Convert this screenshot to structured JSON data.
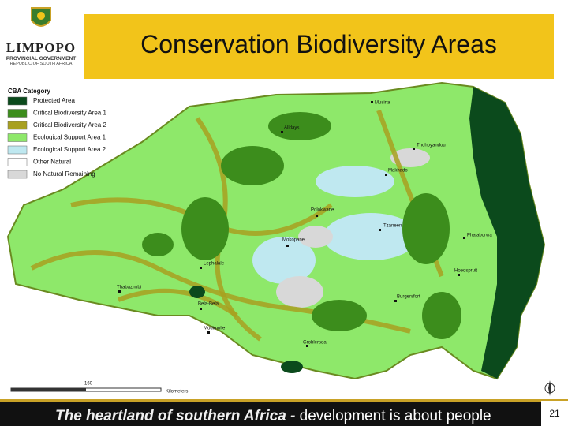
{
  "header": {
    "title": "Conservation Biodiversity Areas"
  },
  "logo": {
    "name": "LIMPOPO",
    "line1": "PROVINCIAL GOVERNMENT",
    "line2": "REPUBLIC OF SOUTH AFRICA"
  },
  "legend": {
    "title": "CBA Category",
    "items": [
      "Protected Area",
      "Critical Biodiversity Area 1",
      "Critical Biodiversity Area 2",
      "Ecological Support Area 1",
      "Ecological Support Area 2",
      "Other Natural",
      "No Natural Remaining"
    ]
  },
  "map": {
    "towns": [
      "Musina",
      "Alldays",
      "Thohoyandou",
      "Makhado",
      "Polokwane",
      "Phalaborwa",
      "Mokopane",
      "Lephalale",
      "Hoedspruit",
      "Tzaneen",
      "Burgersfort",
      "Bela-Bela",
      "Modimolle",
      "Groblersdal",
      "Thabazimbi"
    ],
    "scale_value": "160",
    "scale_unit": "Kilometers"
  },
  "footer": {
    "lead": "The heartland of southern Africa - ",
    "rest": "development is about people",
    "page": "21"
  }
}
